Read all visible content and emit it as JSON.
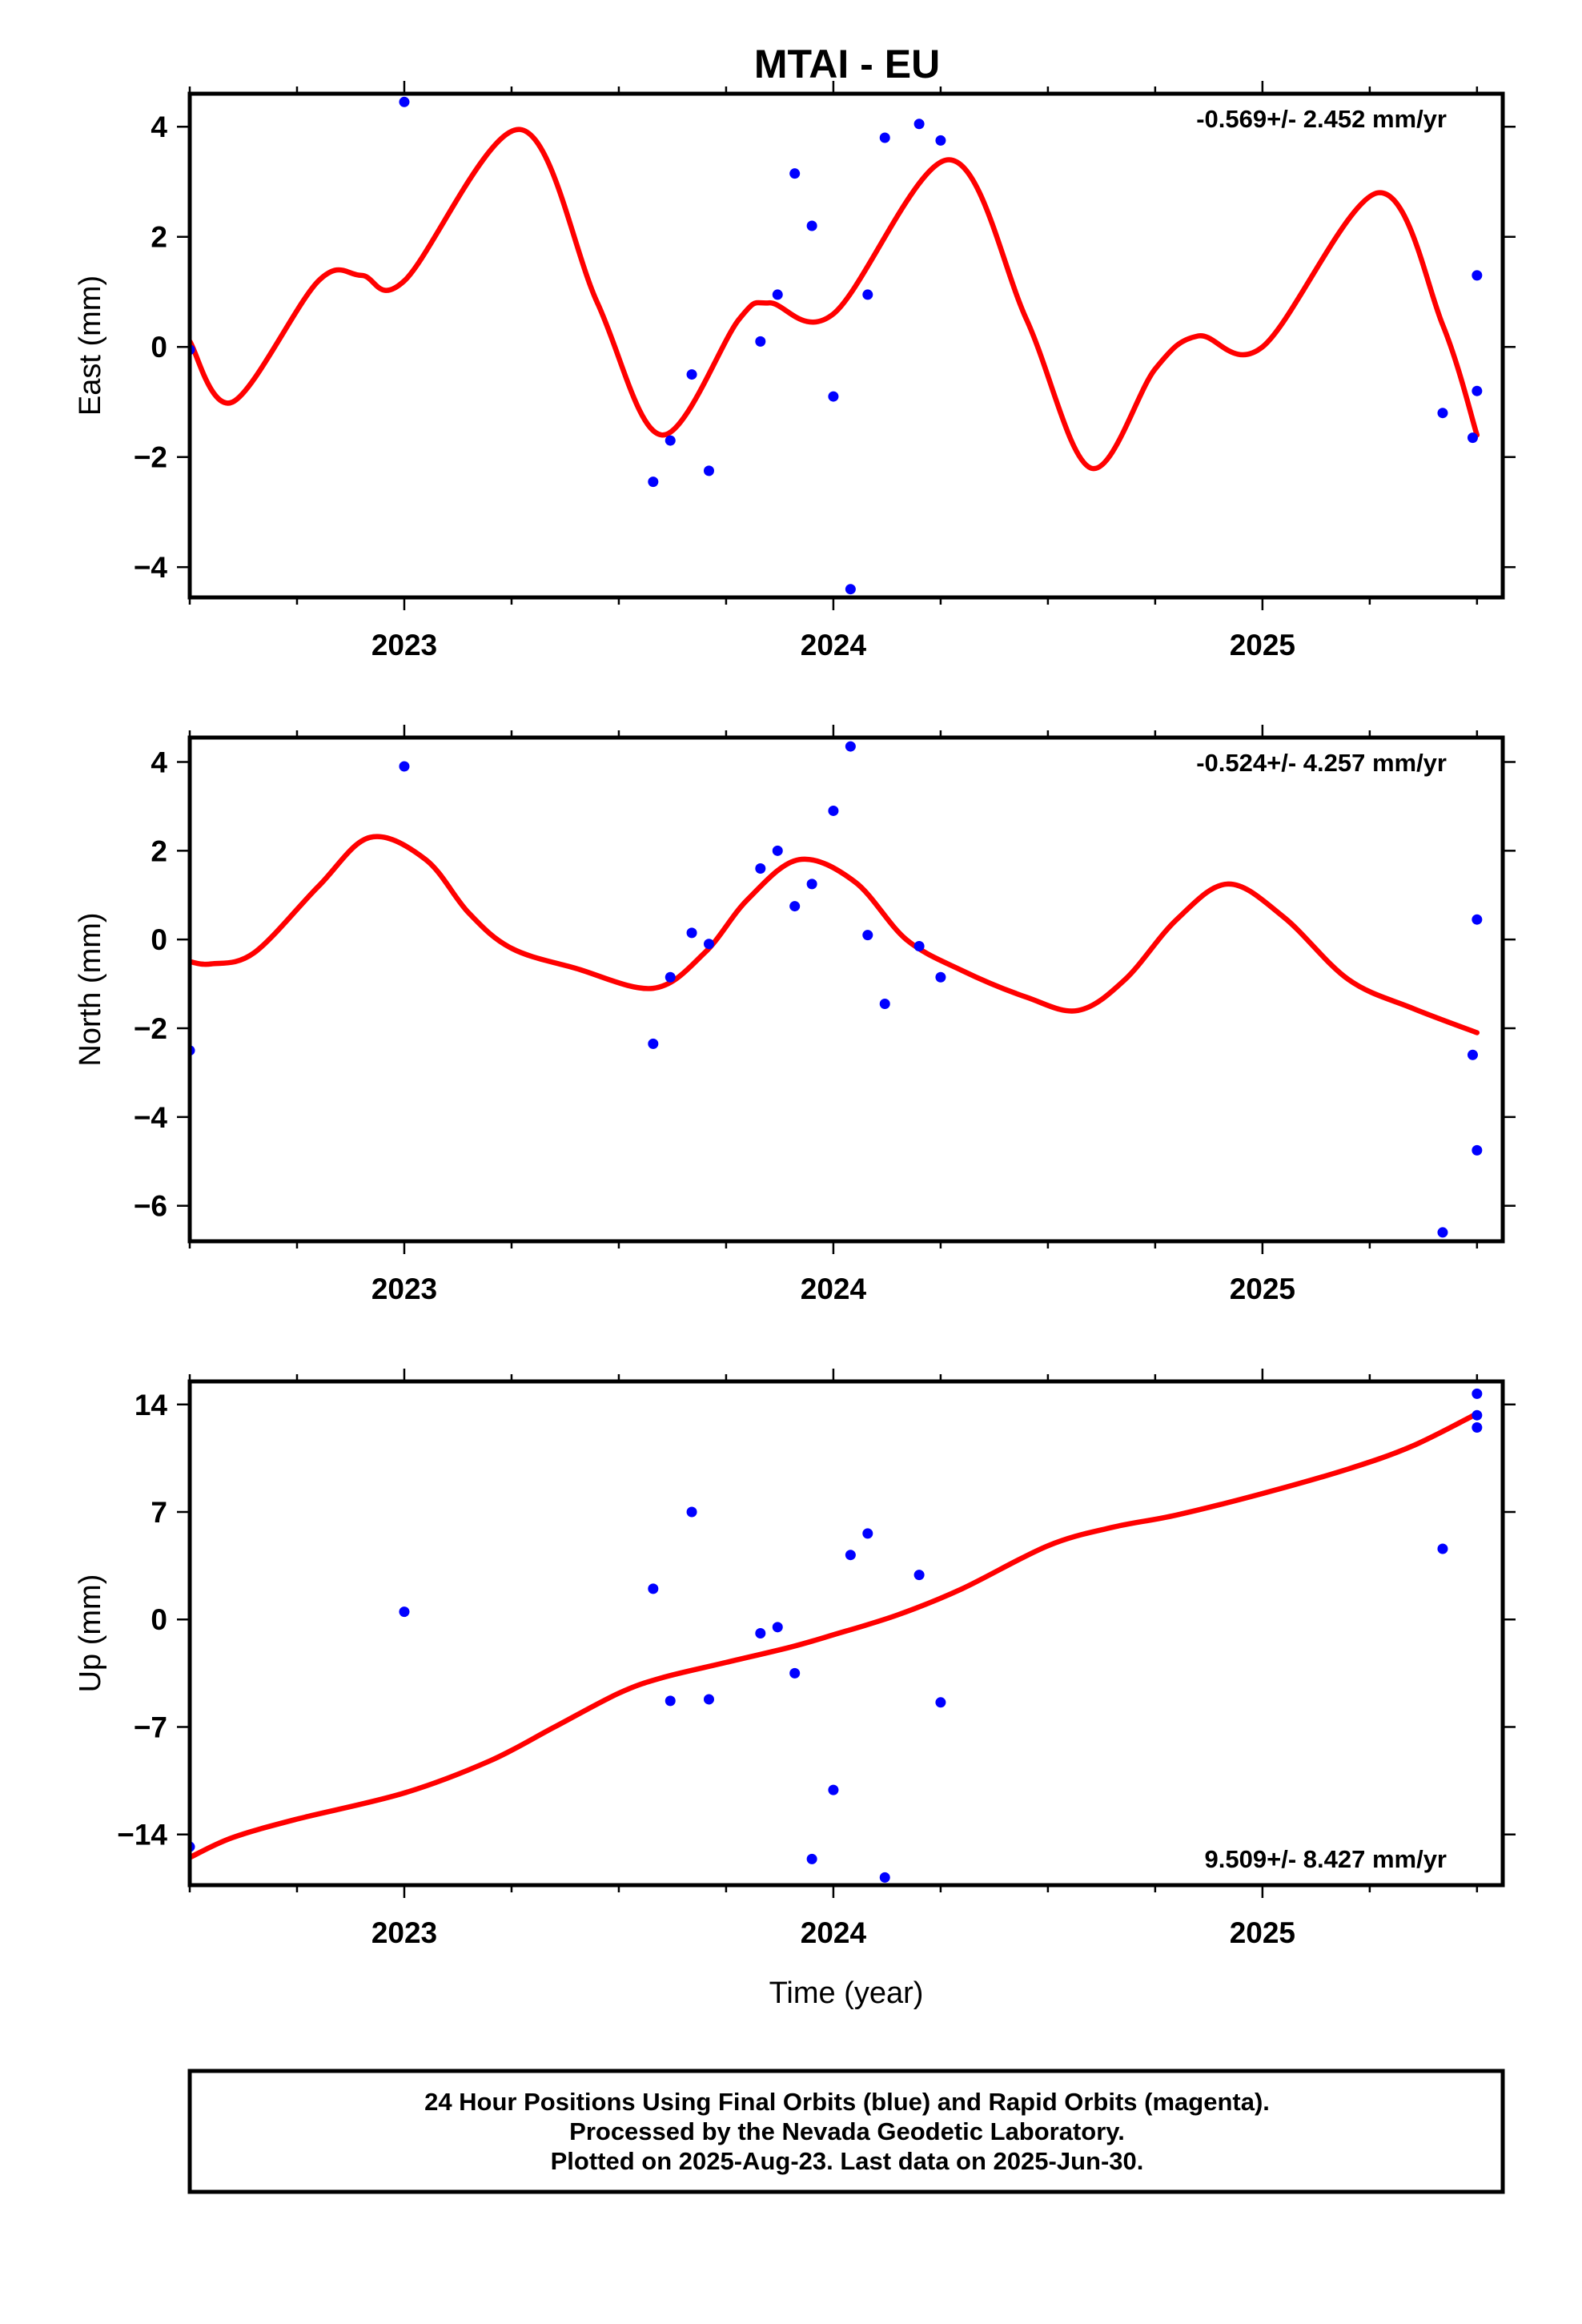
{
  "title": "MTAI - EU",
  "footer": {
    "lines": [
      "24 Hour Positions Using Final Orbits (blue) and Rapid Orbits (magenta).",
      "Processed by the Nevada Geodetic Laboratory.",
      "Plotted on 2025-Aug-23. Last data on 2025-Jun-30."
    ]
  },
  "colors": {
    "points": "#0000ff",
    "fit": "#ff0000",
    "frame": "#000000"
  },
  "chart_data": [
    {
      "type": "scatter",
      "panel": "east",
      "title": "MTAI - EU",
      "ylabel": "East (mm)",
      "xlabel": "",
      "xlim": [
        2022.5,
        2025.56
      ],
      "ylim": [
        -4.55,
        4.6
      ],
      "xticks": [
        2023,
        2024,
        2025
      ],
      "yticks": [
        4,
        2,
        0,
        -2,
        -4
      ],
      "ytick_labels": [
        "4",
        "2",
        "0",
        "−2",
        "−4"
      ],
      "rate": "-0.569+/- 2.452 mm/yr",
      "rate_position": "top-right",
      "grid": false,
      "series": [
        {
          "kind": "points",
          "x": [
            2022.5,
            2023.0,
            2023.58,
            2023.62,
            2023.67,
            2023.71,
            2023.83,
            2023.87,
            2023.91,
            2023.95,
            2024.0,
            2024.04,
            2024.08,
            2024.12,
            2024.2,
            2024.25,
            2025.42,
            2025.49,
            2025.5,
            2025.5
          ],
          "y": [
            -0.05,
            4.45,
            -2.45,
            -1.7,
            -0.5,
            -2.25,
            0.1,
            0.95,
            3.15,
            2.2,
            -0.9,
            -4.4,
            0.95,
            3.8,
            4.05,
            3.75,
            -1.2,
            -1.65,
            -0.8,
            1.3
          ]
        },
        {
          "kind": "fit",
          "x": [
            2022.5,
            2022.6,
            2022.8,
            2022.9,
            2023.0,
            2023.27,
            2023.45,
            2023.6,
            2023.78,
            2023.85,
            2024.0,
            2024.27,
            2024.45,
            2024.6,
            2024.75,
            2024.85,
            2025.0,
            2025.27,
            2025.42,
            2025.5
          ],
          "y": [
            0.1,
            -1.0,
            1.2,
            1.3,
            1.2,
            3.95,
            0.8,
            -1.6,
            0.5,
            0.8,
            0.6,
            3.4,
            0.5,
            -2.2,
            -0.4,
            0.2,
            0.0,
            2.8,
            0.4,
            -1.6
          ]
        }
      ]
    },
    {
      "type": "scatter",
      "panel": "north",
      "ylabel": "North (mm)",
      "xlabel": "",
      "xlim": [
        2022.5,
        2025.56
      ],
      "ylim": [
        -6.8,
        4.55
      ],
      "xticks": [
        2023,
        2024,
        2025
      ],
      "yticks": [
        4,
        2,
        0,
        -2,
        -4,
        -6
      ],
      "ytick_labels": [
        "4",
        "2",
        "0",
        "−2",
        "−4",
        "−6"
      ],
      "rate": "-0.524+/- 4.257 mm/yr",
      "rate_position": "top-right",
      "grid": false,
      "series": [
        {
          "kind": "points",
          "x": [
            2022.5,
            2023.0,
            2023.58,
            2023.62,
            2023.67,
            2023.71,
            2023.83,
            2023.87,
            2023.91,
            2023.95,
            2024.0,
            2024.04,
            2024.08,
            2024.12,
            2024.2,
            2024.25,
            2025.42,
            2025.49,
            2025.5,
            2025.5
          ],
          "y": [
            -2.5,
            3.9,
            -2.35,
            -0.85,
            0.15,
            -0.1,
            1.6,
            2.0,
            0.75,
            1.25,
            2.9,
            4.35,
            0.1,
            -1.45,
            -0.15,
            -0.85,
            -6.6,
            -2.6,
            -4.75,
            0.45
          ]
        },
        {
          "kind": "fit",
          "x": [
            2022.5,
            2022.55,
            2022.65,
            2022.8,
            2022.92,
            2023.05,
            2023.15,
            2023.25,
            2023.4,
            2023.58,
            2023.7,
            2023.8,
            2023.92,
            2024.05,
            2024.17,
            2024.3,
            2024.45,
            2024.57,
            2024.68,
            2024.8,
            2024.92,
            2025.05,
            2025.2,
            2025.35,
            2025.5
          ],
          "y": [
            -0.5,
            -0.55,
            -0.3,
            1.2,
            2.3,
            1.8,
            0.6,
            -0.2,
            -0.65,
            -1.1,
            -0.3,
            0.9,
            1.8,
            1.3,
            0.0,
            -0.7,
            -1.3,
            -1.6,
            -0.9,
            0.45,
            1.25,
            0.5,
            -0.9,
            -1.55,
            -2.1
          ]
        }
      ]
    },
    {
      "type": "scatter",
      "panel": "up",
      "ylabel": "Up (mm)",
      "xlabel": "Time (year)",
      "xlim": [
        2022.5,
        2025.56
      ],
      "ylim": [
        -17.3,
        15.5
      ],
      "xticks": [
        2023,
        2024,
        2025
      ],
      "yticks": [
        14,
        7,
        0,
        -7,
        -14
      ],
      "ytick_labels": [
        "14",
        "7",
        "0",
        "−7",
        "−14"
      ],
      "rate": "9.509+/- 8.427 mm/yr",
      "rate_position": "bottom-right",
      "grid": false,
      "series": [
        {
          "kind": "points",
          "x": [
            2022.5,
            2023.0,
            2023.58,
            2023.62,
            2023.67,
            2023.71,
            2023.83,
            2023.87,
            2023.91,
            2023.95,
            2024.0,
            2024.04,
            2024.08,
            2024.12,
            2024.2,
            2024.25,
            2025.42,
            2025.5,
            2025.5,
            2025.5
          ],
          "y": [
            -14.8,
            0.5,
            2.0,
            -5.3,
            7.0,
            -5.2,
            -0.9,
            -0.5,
            -3.5,
            -15.6,
            -11.1,
            4.2,
            5.6,
            -16.8,
            2.9,
            -5.4,
            4.6,
            14.7,
            13.3,
            12.5
          ]
        },
        {
          "kind": "fit",
          "x": [
            2022.5,
            2022.6,
            2022.75,
            2023.0,
            2023.2,
            2023.35,
            2023.5,
            2023.6,
            2023.75,
            2023.9,
            2024.0,
            2024.15,
            2024.3,
            2024.5,
            2024.65,
            2024.8,
            2025.0,
            2025.2,
            2025.35,
            2025.5
          ],
          "y": [
            -15.5,
            -14.2,
            -13.0,
            -11.3,
            -9.2,
            -7.0,
            -4.8,
            -3.8,
            -2.8,
            -1.8,
            -1.0,
            0.3,
            2.0,
            4.8,
            6.0,
            6.8,
            8.2,
            9.8,
            11.3,
            13.4
          ]
        }
      ]
    }
  ]
}
